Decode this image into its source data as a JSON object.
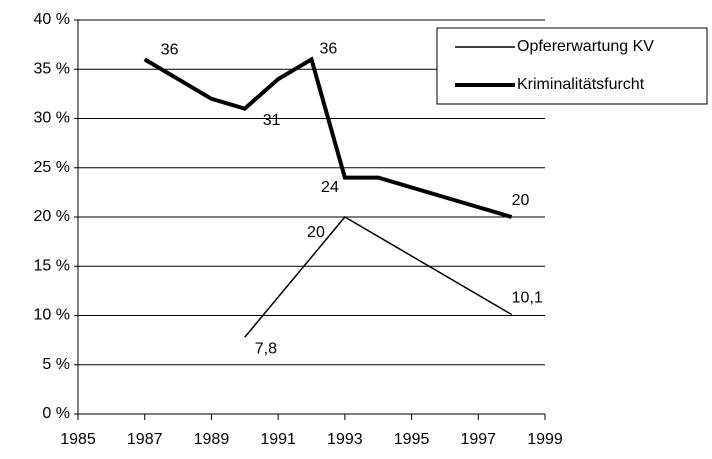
{
  "chart_data": {
    "type": "line",
    "series": [
      {
        "name": "Opfererwartung KV",
        "color": "#000000",
        "line_width": 1.5,
        "x": [
          1990,
          1993,
          1998
        ],
        "values": [
          7.8,
          20,
          10.1
        ],
        "value_labels": [
          "7,8",
          "20",
          "10,1"
        ]
      },
      {
        "name": "Kriminalitätsfurcht",
        "color": "#000000",
        "line_width": 4,
        "x": [
          1987,
          1989,
          1990,
          1991,
          1992,
          1993,
          1994,
          1998
        ],
        "values": [
          36,
          32,
          31,
          34,
          36,
          24,
          24,
          20
        ],
        "value_labels": [
          "36",
          null,
          "31",
          null,
          "36",
          "24",
          null,
          "20"
        ]
      }
    ],
    "xlim": [
      1985,
      1999
    ],
    "xticks": [
      1985,
      1987,
      1989,
      1991,
      1993,
      1995,
      1997,
      1999
    ],
    "ylim": [
      0,
      40
    ],
    "yticks": [
      {
        "value": 0,
        "label": "0 %"
      },
      {
        "value": 5,
        "label": "5 %"
      },
      {
        "value": 10,
        "label": "10 %"
      },
      {
        "value": 15,
        "label": "15 %"
      },
      {
        "value": 20,
        "label": "20 %"
      },
      {
        "value": 25,
        "label": "25 %"
      },
      {
        "value": 30,
        "label": "30 %"
      },
      {
        "value": 35,
        "label": "35 %"
      },
      {
        "value": 40,
        "label": "40 %"
      }
    ],
    "grid": true,
    "legend": "top-right"
  }
}
